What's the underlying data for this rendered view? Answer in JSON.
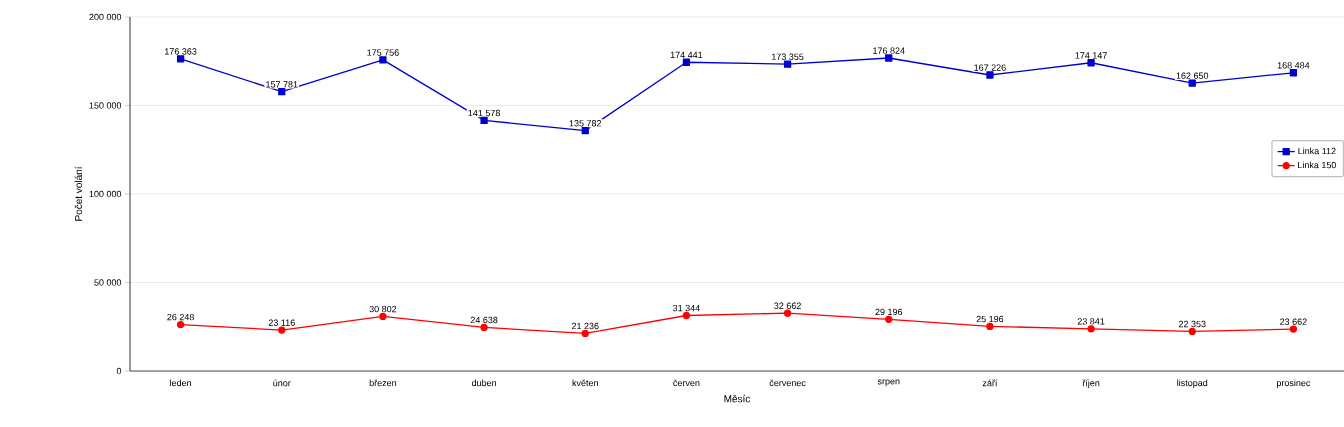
{
  "chart_data": {
    "type": "line",
    "xlabel": "Měsíc",
    "ylabel": "Počet volání",
    "categories": [
      "leden",
      "únor",
      "březen",
      "duben",
      "květen",
      "červen",
      "červenec",
      "srpen",
      "září",
      "říjen",
      "listopad",
      "prosinec"
    ],
    "series": [
      {
        "name": "Linka 112",
        "color": "#0000cc",
        "marker": "square",
        "values": [
          176363,
          157781,
          175756,
          141578,
          135782,
          174441,
          173355,
          176824,
          167226,
          174147,
          162650,
          168484
        ],
        "value_labels": [
          "176 363",
          "157 781",
          "175 756",
          "141 578",
          "135 782",
          "174 441",
          "173 355",
          "176 824",
          "167 226",
          "174 147",
          "162 650",
          "168 484"
        ]
      },
      {
        "name": "Linka 150",
        "color": "#ff0000",
        "marker": "circle",
        "values": [
          26248,
          23116,
          30802,
          24638,
          21236,
          31344,
          32662,
          29196,
          25196,
          23841,
          22353,
          23662
        ],
        "value_labels": [
          "26 248",
          "23 116",
          "30 802",
          "24 638",
          "21 236",
          "31 344",
          "32 662",
          "29 196",
          "25 196",
          "23 841",
          "22 353",
          "23 662"
        ]
      }
    ],
    "ylim": [
      0,
      200000
    ],
    "yticks": [
      {
        "value": 0,
        "label": "0"
      },
      {
        "value": 50000,
        "label": "50 000"
      },
      {
        "value": 100000,
        "label": "100 000"
      },
      {
        "value": 150000,
        "label": "150 000"
      },
      {
        "value": 200000,
        "label": "200 000"
      }
    ],
    "grid": "y",
    "legend": "right",
    "line_style": "solid"
  }
}
